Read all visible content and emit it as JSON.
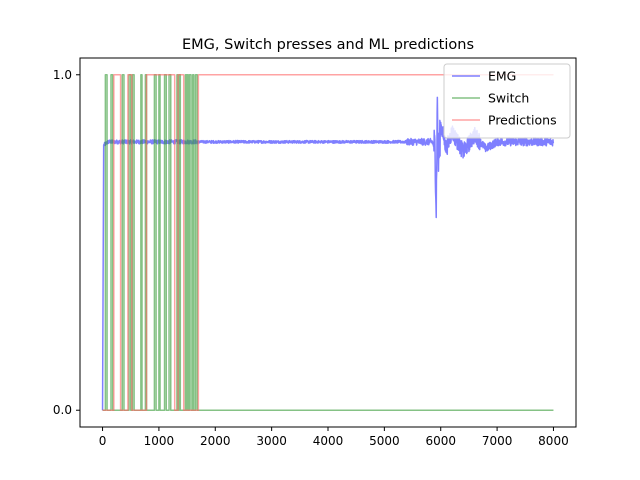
{
  "chart_data": {
    "type": "line",
    "title": "EMG, Switch presses and ML predictions",
    "xlabel": "",
    "ylabel": "",
    "xlim": [
      -400,
      8400
    ],
    "ylim": [
      -0.05,
      1.05
    ],
    "x_ticks": [
      0,
      1000,
      2000,
      3000,
      4000,
      5000,
      6000,
      7000,
      8000
    ],
    "x_tick_labels": [
      "0",
      "1000",
      "2000",
      "3000",
      "4000",
      "5000",
      "6000",
      "7000",
      "8000"
    ],
    "y_ticks": [
      0,
      1
    ],
    "y_tick_labels": [
      "0.0",
      "1.0"
    ],
    "grid": false,
    "legend_position": "top-right",
    "series": [
      {
        "name": "EMG",
        "color": "#7f7fff",
        "points": [
          [
            0,
            0
          ],
          [
            20,
            0.79
          ],
          [
            100,
            0.8
          ],
          [
            500,
            0.8
          ],
          [
            1000,
            0.8
          ],
          [
            1700,
            0.8
          ],
          [
            2000,
            0.8
          ],
          [
            3000,
            0.8
          ],
          [
            4000,
            0.8
          ],
          [
            4500,
            0.8
          ],
          [
            5000,
            0.8
          ],
          [
            5500,
            0.8
          ],
          [
            5850,
            0.8
          ],
          [
            5900,
            0.78
          ],
          [
            5920,
            0.6
          ],
          [
            5940,
            0.92
          ],
          [
            5960,
            0.74
          ],
          [
            6000,
            0.85
          ],
          [
            6100,
            0.78
          ],
          [
            6200,
            0.83
          ],
          [
            6400,
            0.77
          ],
          [
            6600,
            0.82
          ],
          [
            6800,
            0.78
          ],
          [
            7000,
            0.8
          ],
          [
            7500,
            0.8
          ],
          [
            8000,
            0.8
          ]
        ],
        "noise": [
          {
            "x_start": 0,
            "x_end": 1700,
            "amplitude": 0.006
          },
          {
            "x_start": 1700,
            "x_end": 5400,
            "amplitude": 0.004
          },
          {
            "x_start": 5400,
            "x_end": 5880,
            "amplitude": 0.01
          },
          {
            "x_start": 5880,
            "x_end": 6000,
            "amplitude": 0.06
          },
          {
            "x_start": 6000,
            "x_end": 6700,
            "amplitude": 0.025
          },
          {
            "x_start": 6700,
            "x_end": 8000,
            "amplitude": 0.012
          }
        ]
      },
      {
        "name": "Switch",
        "color": "#339933",
        "pulses": [
          [
            50,
            80
          ],
          [
            150,
            180
          ],
          [
            350,
            380
          ],
          [
            470,
            500
          ],
          [
            530,
            560
          ],
          [
            680,
            700
          ],
          [
            760,
            780
          ],
          [
            920,
            950
          ],
          [
            1000,
            1020
          ],
          [
            1100,
            1130
          ],
          [
            1180,
            1210
          ],
          [
            1320,
            1340
          ],
          [
            1360,
            1380
          ],
          [
            1470,
            1490
          ],
          [
            1500,
            1520
          ],
          [
            1540,
            1570
          ],
          [
            1600,
            1620
          ],
          [
            1650,
            1680
          ]
        ],
        "baseline": 0,
        "x_end": 8000
      },
      {
        "name": "Predictions",
        "color": "#ff6666",
        "pulses": [
          [
            200,
            320
          ],
          [
            450,
            520
          ],
          [
            780,
            1280
          ],
          [
            1340,
            1440
          ],
          [
            1700,
            8000
          ]
        ],
        "baseline": 0,
        "x_end": 8000
      }
    ]
  }
}
